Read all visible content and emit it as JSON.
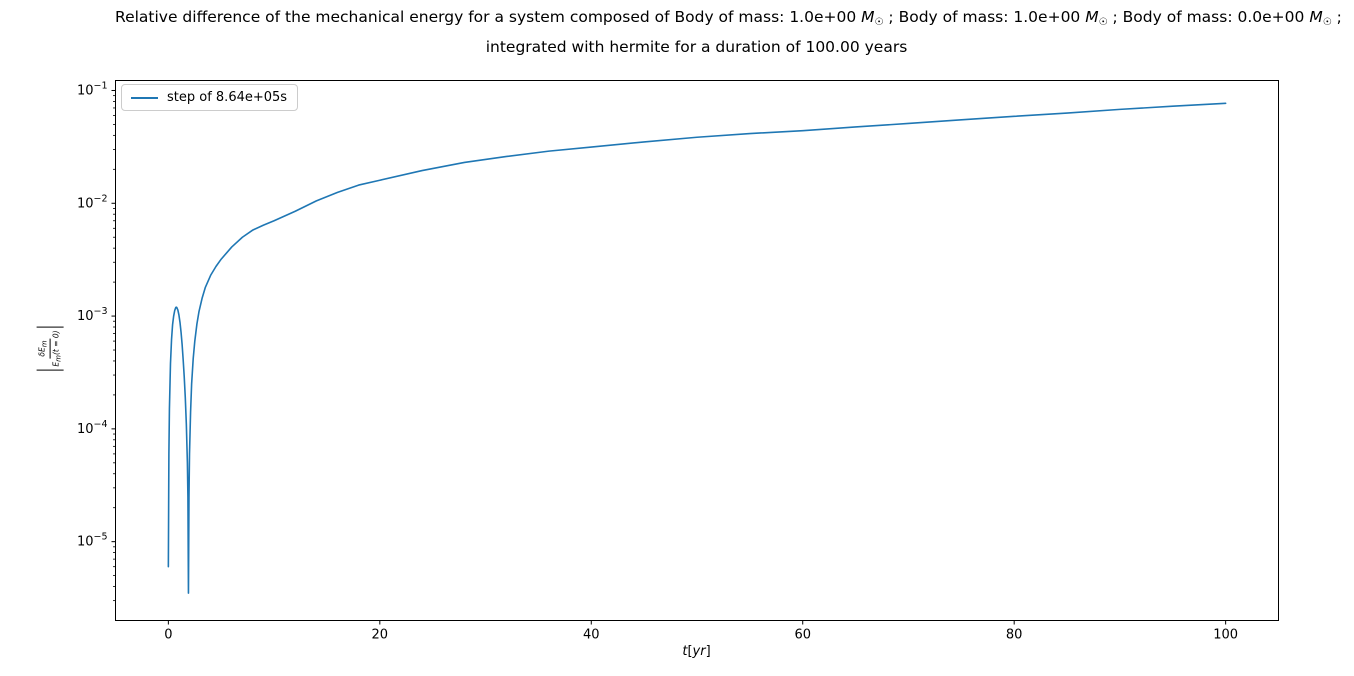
{
  "figure": {
    "background": "#ffffff"
  },
  "title": {
    "line1_segments": [
      {
        "text": "Relative difference of the mechanical energy for a system composed of Body of mass: 1.0e+00 "
      },
      {
        "text": "M",
        "style": "italic"
      },
      {
        "text": "☉",
        "style": "sub"
      },
      {
        "text": " ; Body of mass: 1.0e+00 "
      },
      {
        "text": "M",
        "style": "italic"
      },
      {
        "text": "☉",
        "style": "sub"
      },
      {
        "text": " ; Body of mass: 0.0e+00 "
      },
      {
        "text": "M",
        "style": "italic"
      },
      {
        "text": "☉",
        "style": "sub"
      },
      {
        "text": " ;"
      }
    ],
    "line2": "integrated with hermite for a duration of 100.00 years"
  },
  "legend": {
    "label": "step of 8.64e+05s",
    "line_color": "#1f77b4",
    "position": "upper left"
  },
  "axes": {
    "xlabel_segments": [
      {
        "text": "t",
        "style": "italic"
      },
      {
        "text": "["
      },
      {
        "text": "yr",
        "style": "italic"
      },
      {
        "text": "]"
      }
    ],
    "ylabel": {
      "numerator_segments": [
        {
          "text": "δE",
          "style": "italic"
        },
        {
          "text": "m",
          "style": "subitalic"
        }
      ],
      "denominator_segments": [
        {
          "text": "E",
          "style": "italic"
        },
        {
          "text": "m",
          "style": "subitalic"
        },
        {
          "text": "(t = 0)",
          "style": "italic"
        }
      ]
    }
  },
  "chart_data": {
    "type": "line",
    "title": "Relative difference of the mechanical energy for a system composed of Body of mass: 1.0e+00 M☉ ; Body of mass: 1.0e+00 M☉ ; Body of mass: 0.0e+00 M☉ ; integrated with hermite for a duration of 100.00 years",
    "xlabel": "t[yr]",
    "ylabel": "|δE_m / E_m(t=0)|",
    "xscale": "linear",
    "yscale": "log",
    "xlim": [
      -5,
      105
    ],
    "ylim": [
      2e-06,
      0.1226
    ],
    "grid": false,
    "legend_position": "upper left",
    "x_ticks": [
      {
        "value": 0,
        "label": "0"
      },
      {
        "value": 20,
        "label": "20"
      },
      {
        "value": 40,
        "label": "40"
      },
      {
        "value": 60,
        "label": "60"
      },
      {
        "value": 80,
        "label": "80"
      },
      {
        "value": 100,
        "label": "100"
      }
    ],
    "y_ticks": [
      {
        "value": 0.1,
        "base": "10",
        "exp": "−1"
      },
      {
        "value": 0.01,
        "base": "10",
        "exp": "−2"
      },
      {
        "value": 0.001,
        "base": "10",
        "exp": "−3"
      },
      {
        "value": 0.0001,
        "base": "10",
        "exp": "−4"
      },
      {
        "value": 1e-05,
        "base": "10",
        "exp": "−5"
      }
    ],
    "series": [
      {
        "name": "step of 8.64e+05s",
        "color": "#1f77b4",
        "points": [
          [
            0.0,
            6e-06
          ],
          [
            0.05,
            6e-05
          ],
          [
            0.1,
            0.00015
          ],
          [
            0.2,
            0.00038
          ],
          [
            0.3,
            0.00062
          ],
          [
            0.4,
            0.00084
          ],
          [
            0.5,
            0.001
          ],
          [
            0.6,
            0.00112
          ],
          [
            0.7,
            0.00119
          ],
          [
            0.75,
            0.0012
          ],
          [
            0.8,
            0.00119
          ],
          [
            0.9,
            0.00113
          ],
          [
            1.0,
            0.00102
          ],
          [
            1.1,
            0.00088
          ],
          [
            1.2,
            0.00072
          ],
          [
            1.3,
            0.00056
          ],
          [
            1.4,
            0.00041
          ],
          [
            1.5,
            0.00029
          ],
          [
            1.6,
            0.00019
          ],
          [
            1.7,
            0.00011
          ],
          [
            1.8,
            5e-05
          ],
          [
            1.85,
            2.5e-05
          ],
          [
            1.9,
            3.5e-06
          ],
          [
            1.95,
            2.5e-05
          ],
          [
            2.0,
            6e-05
          ],
          [
            2.1,
            0.00014
          ],
          [
            2.2,
            0.00025
          ],
          [
            2.35,
            0.00042
          ],
          [
            2.5,
            0.0006
          ],
          [
            2.7,
            0.00085
          ],
          [
            2.9,
            0.0011
          ],
          [
            3.2,
            0.00145
          ],
          [
            3.5,
            0.0018
          ],
          [
            4.0,
            0.0023
          ],
          [
            4.5,
            0.00275
          ],
          [
            5.0,
            0.0032
          ],
          [
            6.0,
            0.0041
          ],
          [
            7.0,
            0.005
          ],
          [
            8.0,
            0.0058
          ],
          [
            9.0,
            0.0064
          ],
          [
            10,
            0.007
          ],
          [
            12,
            0.0085
          ],
          [
            14,
            0.0105
          ],
          [
            16,
            0.0125
          ],
          [
            18,
            0.0145
          ],
          [
            20,
            0.016
          ],
          [
            24,
            0.0195
          ],
          [
            28,
            0.023
          ],
          [
            32,
            0.026
          ],
          [
            36,
            0.029
          ],
          [
            40,
            0.0315
          ],
          [
            45,
            0.035
          ],
          [
            50,
            0.0385
          ],
          [
            55,
            0.0415
          ],
          [
            60,
            0.044
          ],
          [
            65,
            0.0475
          ],
          [
            70,
            0.051
          ],
          [
            75,
            0.055
          ],
          [
            80,
            0.059
          ],
          [
            85,
            0.063
          ],
          [
            90,
            0.068
          ],
          [
            95,
            0.0725
          ],
          [
            100,
            0.077
          ]
        ]
      }
    ]
  }
}
